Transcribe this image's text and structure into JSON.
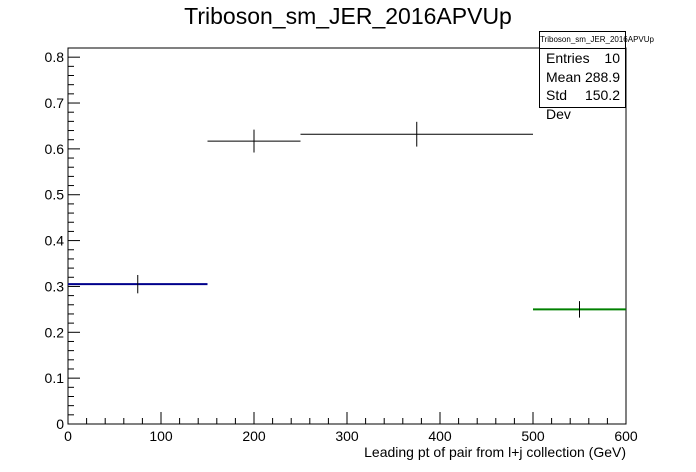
{
  "chart_data": {
    "type": "histogram",
    "title": "Triboson_sm_JER_2016APVUp",
    "xlabel": "Leading pt of pair from l+j collection (GeV)",
    "ylabel": "",
    "xlim": [
      0,
      600
    ],
    "ylim": [
      0,
      0.82
    ],
    "xticks": [
      "0",
      "100",
      "200",
      "300",
      "400",
      "500",
      "600"
    ],
    "yticks": [
      "0",
      "0.1",
      "0.2",
      "0.3",
      "0.4",
      "0.5",
      "0.6",
      "0.7",
      "0.8"
    ],
    "bins": [
      {
        "xlow": 0,
        "xhigh": 150,
        "value": 0.305,
        "error": 0.02,
        "color": "#00008b"
      },
      {
        "xlow": 150,
        "xhigh": 250,
        "value": 0.617,
        "error": 0.025,
        "color": "#000000"
      },
      {
        "xlow": 250,
        "xhigh": 500,
        "value": 0.632,
        "error": 0.027,
        "color": "#000000"
      },
      {
        "xlow": 500,
        "xhigh": 600,
        "value": 0.25,
        "error": 0.018,
        "color": "#008000"
      }
    ],
    "stats": {
      "title": "Triboson_sm_JER_2016APVUp",
      "rows": [
        {
          "label": "Entries",
          "value": "10"
        },
        {
          "label": "Mean",
          "value": "288.9"
        },
        {
          "label": "Std Dev",
          "value": "150.2"
        }
      ]
    }
  }
}
